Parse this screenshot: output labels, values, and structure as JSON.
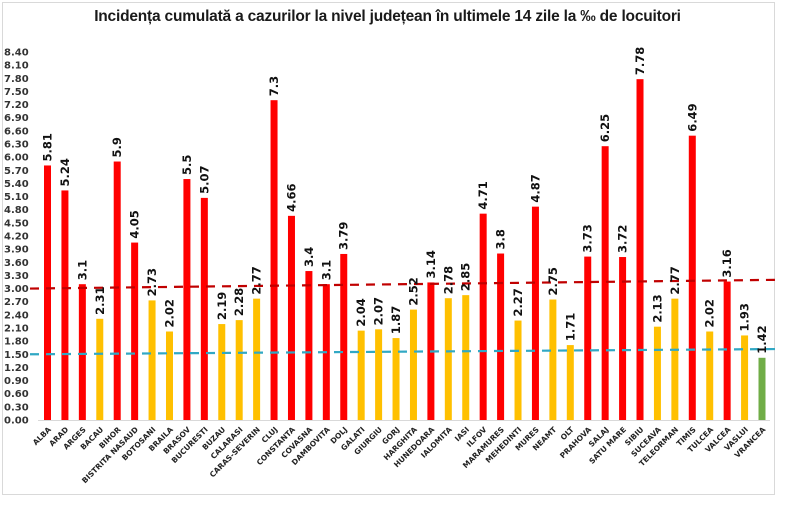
{
  "chart_data": {
    "type": "bar",
    "title": "Incidența cumulată a cazurilor la nivel județean în ultimele 14 zile la ‰ de locuitori",
    "xlabel": "",
    "ylabel": "",
    "ylim": [
      0,
      8.4
    ],
    "yticks": [
      "0.00",
      "0.30",
      "0.60",
      "0.90",
      "1.20",
      "1.50",
      "1.80",
      "2.10",
      "2.40",
      "2.70",
      "3.00",
      "3.30",
      "3.60",
      "3.90",
      "4.20",
      "4.50",
      "4.80",
      "5.10",
      "5.40",
      "5.70",
      "6.00",
      "6.30",
      "6.60",
      "6.90",
      "7.20",
      "7.50",
      "7.80",
      "8.10",
      "8.40"
    ],
    "grid": false,
    "legend": "none",
    "categories": [
      "ALBA",
      "ARAD",
      "ARGES",
      "BACAU",
      "BIHOR",
      "BISTRITA NASAUD",
      "BOTOSANI",
      "BRAILA",
      "BRASOV",
      "BUCURESTI",
      "BUZAU",
      "CALARASI",
      "CARAS-SEVERIN",
      "CLUJ",
      "CONSTANTA",
      "COVASNA",
      "DAMBOVITA",
      "DOLJ",
      "GALATI",
      "GIURGIU",
      "GORJ",
      "HARGHITA",
      "HUNEDOARA",
      "IALOMITA",
      "IASI",
      "ILFOV",
      "MARAMURES",
      "MEHEDINTI",
      "MURES",
      "NEAMT",
      "OLT",
      "PRAHOVA",
      "SALAJ",
      "SATU MARE",
      "SIBIU",
      "SUCEAVA",
      "TELEORMAN",
      "TIMIS",
      "TULCEA",
      "VALCEA",
      "VASLUI",
      "VRANCEA"
    ],
    "values": [
      5.81,
      5.24,
      3.1,
      2.31,
      5.9,
      4.05,
      2.73,
      2.02,
      5.5,
      5.07,
      2.19,
      2.28,
      2.77,
      7.3,
      4.66,
      3.4,
      3.1,
      3.79,
      2.04,
      2.07,
      1.87,
      2.52,
      3.14,
      2.78,
      2.85,
      4.71,
      3.8,
      2.27,
      4.87,
      2.75,
      1.71,
      3.73,
      6.25,
      3.72,
      7.78,
      2.13,
      2.77,
      6.49,
      2.02,
      3.16,
      1.93,
      1.42
    ],
    "value_labels": [
      "5.81",
      "5.24",
      "3.1",
      "2.31",
      "5.9",
      "4.05",
      "2.73",
      "2.02",
      "5.5",
      "5.07",
      "2.19",
      "2.28",
      "2.77",
      "7.3",
      "4.66",
      "3.4",
      "3.1",
      "3.79",
      "2.04",
      "2.07",
      "1.87",
      "2.52",
      "3.14",
      "2.78",
      "2.85",
      "4.71",
      "3.8",
      "2.27",
      "4.87",
      "2.75",
      "1.71",
      "3.73",
      "6.25",
      "3.72",
      "7.78",
      "2.13",
      "2.77",
      "6.49",
      "2.02",
      "3.16",
      "1.93",
      "1.42"
    ],
    "color_rules": [
      {
        "range": "> 3",
        "color": "#ff0000"
      },
      {
        "range": "1.5 - 3",
        "color": "#ffc000"
      },
      {
        "range": "< 1.5",
        "color": "#70ad47"
      }
    ],
    "reference_lines": [
      {
        "name": "threshold-3",
        "color": "#c00000",
        "style": "dashed",
        "start": 3.0,
        "end": 3.2
      },
      {
        "name": "threshold-1.5",
        "color": "#31a8c4",
        "style": "dashed",
        "start": 1.5,
        "end": 1.62
      }
    ]
  }
}
